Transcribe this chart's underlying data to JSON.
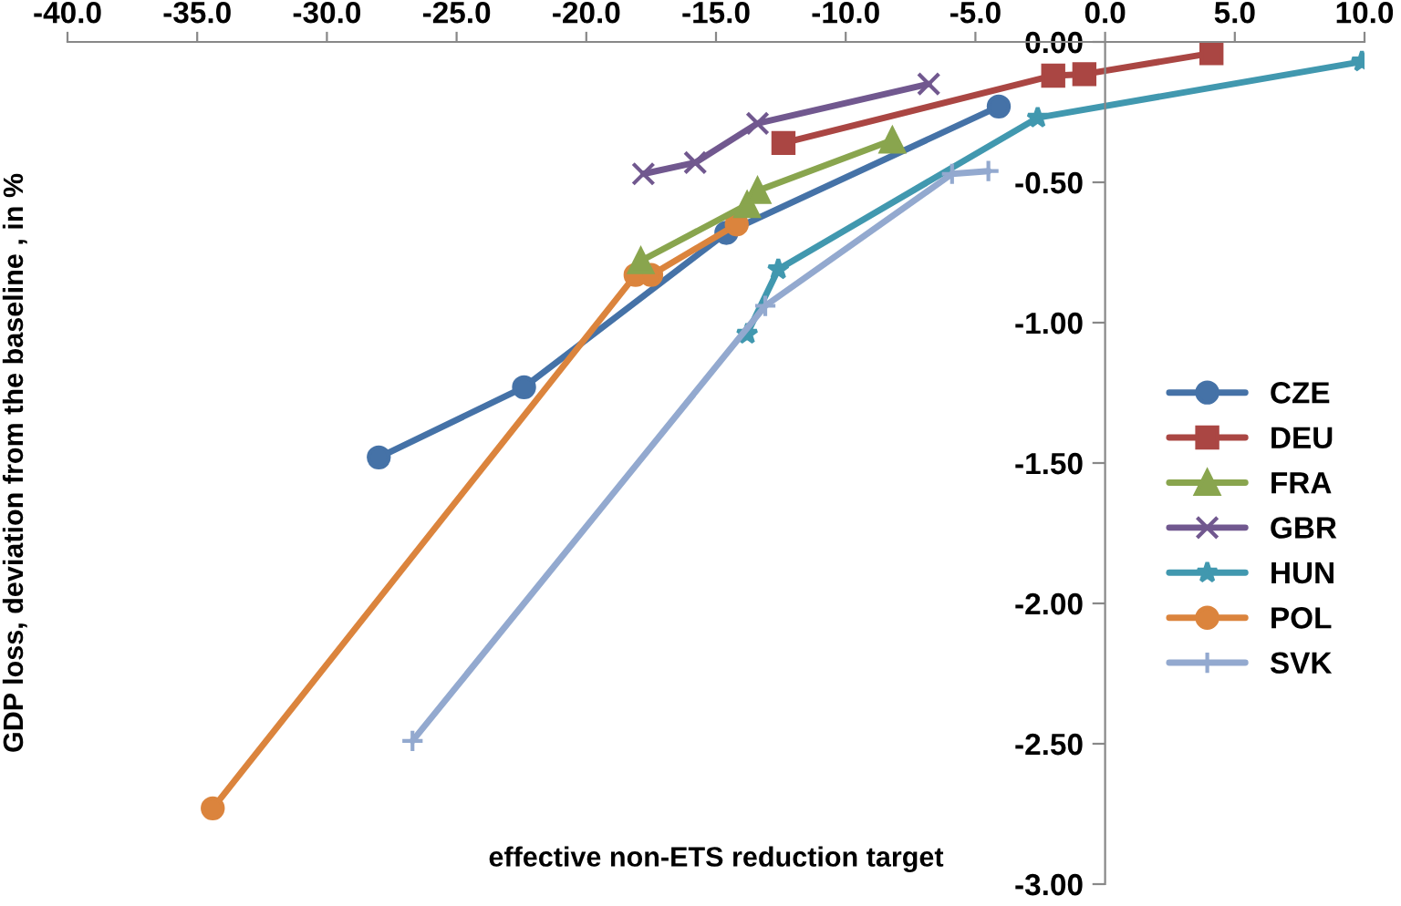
{
  "chart_data": {
    "type": "line",
    "xlabel": "effective non-ETS reduction target",
    "ylabel": "GDP loss, deviation from the baseline , in %",
    "xlim": [
      -40,
      10
    ],
    "ylim": [
      -3,
      0
    ],
    "xticks": [
      {
        "value": -40,
        "label": "-40.0"
      },
      {
        "value": -35,
        "label": "-35.0"
      },
      {
        "value": -30,
        "label": "-30.0"
      },
      {
        "value": -25,
        "label": "-25.0"
      },
      {
        "value": -20,
        "label": "-20.0"
      },
      {
        "value": -15,
        "label": "-15.0"
      },
      {
        "value": -10,
        "label": "-10.0"
      },
      {
        "value": -5,
        "label": "-5.0"
      },
      {
        "value": 0,
        "label": "0.0"
      },
      {
        "value": 5,
        "label": "5.0"
      },
      {
        "value": 10,
        "label": "10.0"
      }
    ],
    "yticks": [
      {
        "value": 0,
        "label": "0.00"
      },
      {
        "value": -0.5,
        "label": "-0.50"
      },
      {
        "value": -1,
        "label": "-1.00"
      },
      {
        "value": -1.5,
        "label": "-1.50"
      },
      {
        "value": -2,
        "label": "-2.00"
      },
      {
        "value": -2.5,
        "label": "-2.50"
      },
      {
        "value": -3,
        "label": "-3.00"
      }
    ],
    "grid": false,
    "legend": "right",
    "line_style": "solid",
    "series": [
      {
        "name": "CZE",
        "color": "#4572a7",
        "marker": "circle",
        "x": [
          -28.0,
          -22.4,
          -14.6,
          -4.1
        ],
        "values": [
          -1.48,
          -1.23,
          -0.68,
          -0.23
        ]
      },
      {
        "name": "DEU",
        "color": "#aa4643",
        "marker": "square",
        "x": [
          -12.4,
          -2.0,
          -0.8,
          4.1
        ],
        "values": [
          -0.36,
          -0.12,
          -0.115,
          -0.04
        ]
      },
      {
        "name": "FRA",
        "color": "#89a54e",
        "marker": "triangle",
        "x": [
          -17.9,
          -13.8,
          -13.4,
          -8.2
        ],
        "values": [
          -0.78,
          -0.58,
          -0.53,
          -0.35
        ]
      },
      {
        "name": "GBR",
        "color": "#71588f",
        "marker": "cross",
        "x": [
          -17.8,
          -15.8,
          -13.4,
          -6.8
        ],
        "values": [
          -0.47,
          -0.43,
          -0.29,
          -0.15
        ]
      },
      {
        "name": "HUN",
        "color": "#4198af",
        "marker": "star",
        "x": [
          -13.8,
          -12.6,
          -2.6,
          9.9
        ],
        "values": [
          -1.04,
          -0.81,
          -0.27,
          -0.07
        ]
      },
      {
        "name": "POL",
        "color": "#db843d",
        "marker": "circle",
        "x": [
          -34.4,
          -18.1,
          -17.5,
          -14.2
        ],
        "values": [
          -2.73,
          -0.83,
          -0.83,
          -0.65
        ]
      },
      {
        "name": "SVK",
        "color": "#93a9cf",
        "marker": "plus",
        "x": [
          -26.7,
          -13.1,
          -5.9,
          -4.5
        ],
        "values": [
          -2.49,
          -0.94,
          -0.47,
          -0.46
        ]
      }
    ]
  }
}
